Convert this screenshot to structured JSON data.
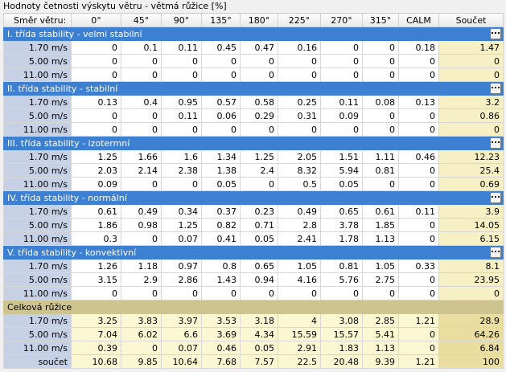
{
  "title": "Hodnoty četnosti výskytu větru - větmá růžice  [%]",
  "header": [
    "Směr větru:",
    "0°",
    "45°",
    "90°",
    "135°",
    "180°",
    "225°",
    "270°",
    "315°",
    "CALM",
    "Součet"
  ],
  "groups": [
    {
      "title": "I. třída stability - velmi stabilní",
      "rows": [
        {
          "label": "1.70 m/s",
          "values": [
            0,
            0.1,
            0.11,
            0.45,
            0.47,
            0.16,
            0,
            0,
            0.18,
            1.47
          ]
        },
        {
          "label": "5.00 m/s",
          "values": [
            0,
            0,
            0,
            0,
            0,
            0,
            0,
            0,
            0,
            0
          ]
        },
        {
          "label": "11.00 m/s",
          "values": [
            0,
            0,
            0,
            0,
            0,
            0,
            0,
            0,
            0,
            0
          ]
        }
      ]
    },
    {
      "title": "II. třída stability - stabilní",
      "rows": [
        {
          "label": "1.70 m/s",
          "values": [
            0.13,
            0.4,
            0.95,
            0.57,
            0.58,
            0.25,
            0.11,
            0.08,
            0.13,
            3.2
          ]
        },
        {
          "label": "5.00 m/s",
          "values": [
            0,
            0,
            0.11,
            0.06,
            0.29,
            0.31,
            0.09,
            0,
            0,
            0.86
          ]
        },
        {
          "label": "11.00 m/s",
          "values": [
            0,
            0,
            0,
            0,
            0,
            0,
            0,
            0,
            0,
            0
          ]
        }
      ]
    },
    {
      "title": "III. třída stability - izotermní",
      "rows": [
        {
          "label": "1.70 m/s",
          "values": [
            1.25,
            1.66,
            1.6,
            1.34,
            1.25,
            2.05,
            1.51,
            1.11,
            0.46,
            12.23
          ]
        },
        {
          "label": "5.00 m/s",
          "values": [
            2.03,
            2.14,
            2.38,
            1.38,
            2.4,
            8.32,
            5.94,
            0.81,
            0,
            25.4
          ]
        },
        {
          "label": "11.00 m/s",
          "values": [
            0.09,
            0,
            0,
            0.05,
            0,
            0.5,
            0.05,
            0,
            0,
            0.69
          ]
        }
      ]
    },
    {
      "title": "IV. třída stability - normální",
      "rows": [
        {
          "label": "1.70 m/s",
          "values": [
            0.61,
            0.49,
            0.34,
            0.37,
            0.23,
            0.49,
            0.65,
            0.61,
            0.11,
            3.9
          ]
        },
        {
          "label": "5.00 m/s",
          "values": [
            1.86,
            0.98,
            1.25,
            0.82,
            0.71,
            2.8,
            3.78,
            1.85,
            0,
            14.05
          ]
        },
        {
          "label": "11.00 m/s",
          "values": [
            0.3,
            0,
            0.07,
            0.41,
            0.05,
            2.41,
            1.78,
            1.13,
            0,
            6.15
          ]
        }
      ]
    },
    {
      "title": "V. třída stability - konvektivní",
      "rows": [
        {
          "label": "1.70 m/s",
          "values": [
            1.26,
            1.18,
            0.97,
            0.8,
            0.65,
            1.05,
            0.81,
            1.05,
            0.33,
            8.1
          ]
        },
        {
          "label": "5.00 m/s",
          "values": [
            3.15,
            2.9,
            2.86,
            1.43,
            0.94,
            4.16,
            5.76,
            2.75,
            0,
            23.95
          ]
        },
        {
          "label": "11.00 m/s",
          "values": [
            0,
            0,
            0,
            0,
            0,
            0,
            0,
            0,
            0,
            0
          ]
        }
      ]
    },
    {
      "title": "Celková růžice",
      "rows": [
        {
          "label": "1.70 m/s",
          "values": [
            3.25,
            3.83,
            3.97,
            3.53,
            3.18,
            4,
            3.08,
            2.85,
            1.21,
            28.9
          ]
        },
        {
          "label": "5.00 m/s",
          "values": [
            7.04,
            6.02,
            6.6,
            3.69,
            4.34,
            15.59,
            15.57,
            5.41,
            0,
            64.26
          ]
        },
        {
          "label": "11.00 m/s",
          "values": [
            0.39,
            0,
            0.07,
            0.46,
            0.05,
            2.91,
            1.83,
            1.13,
            0,
            6.84
          ]
        },
        {
          "label": "součet",
          "values": [
            10.68,
            9.85,
            10.64,
            7.68,
            7.57,
            22.5,
            20.48,
            9.39,
            1.21,
            100
          ]
        }
      ]
    }
  ]
}
